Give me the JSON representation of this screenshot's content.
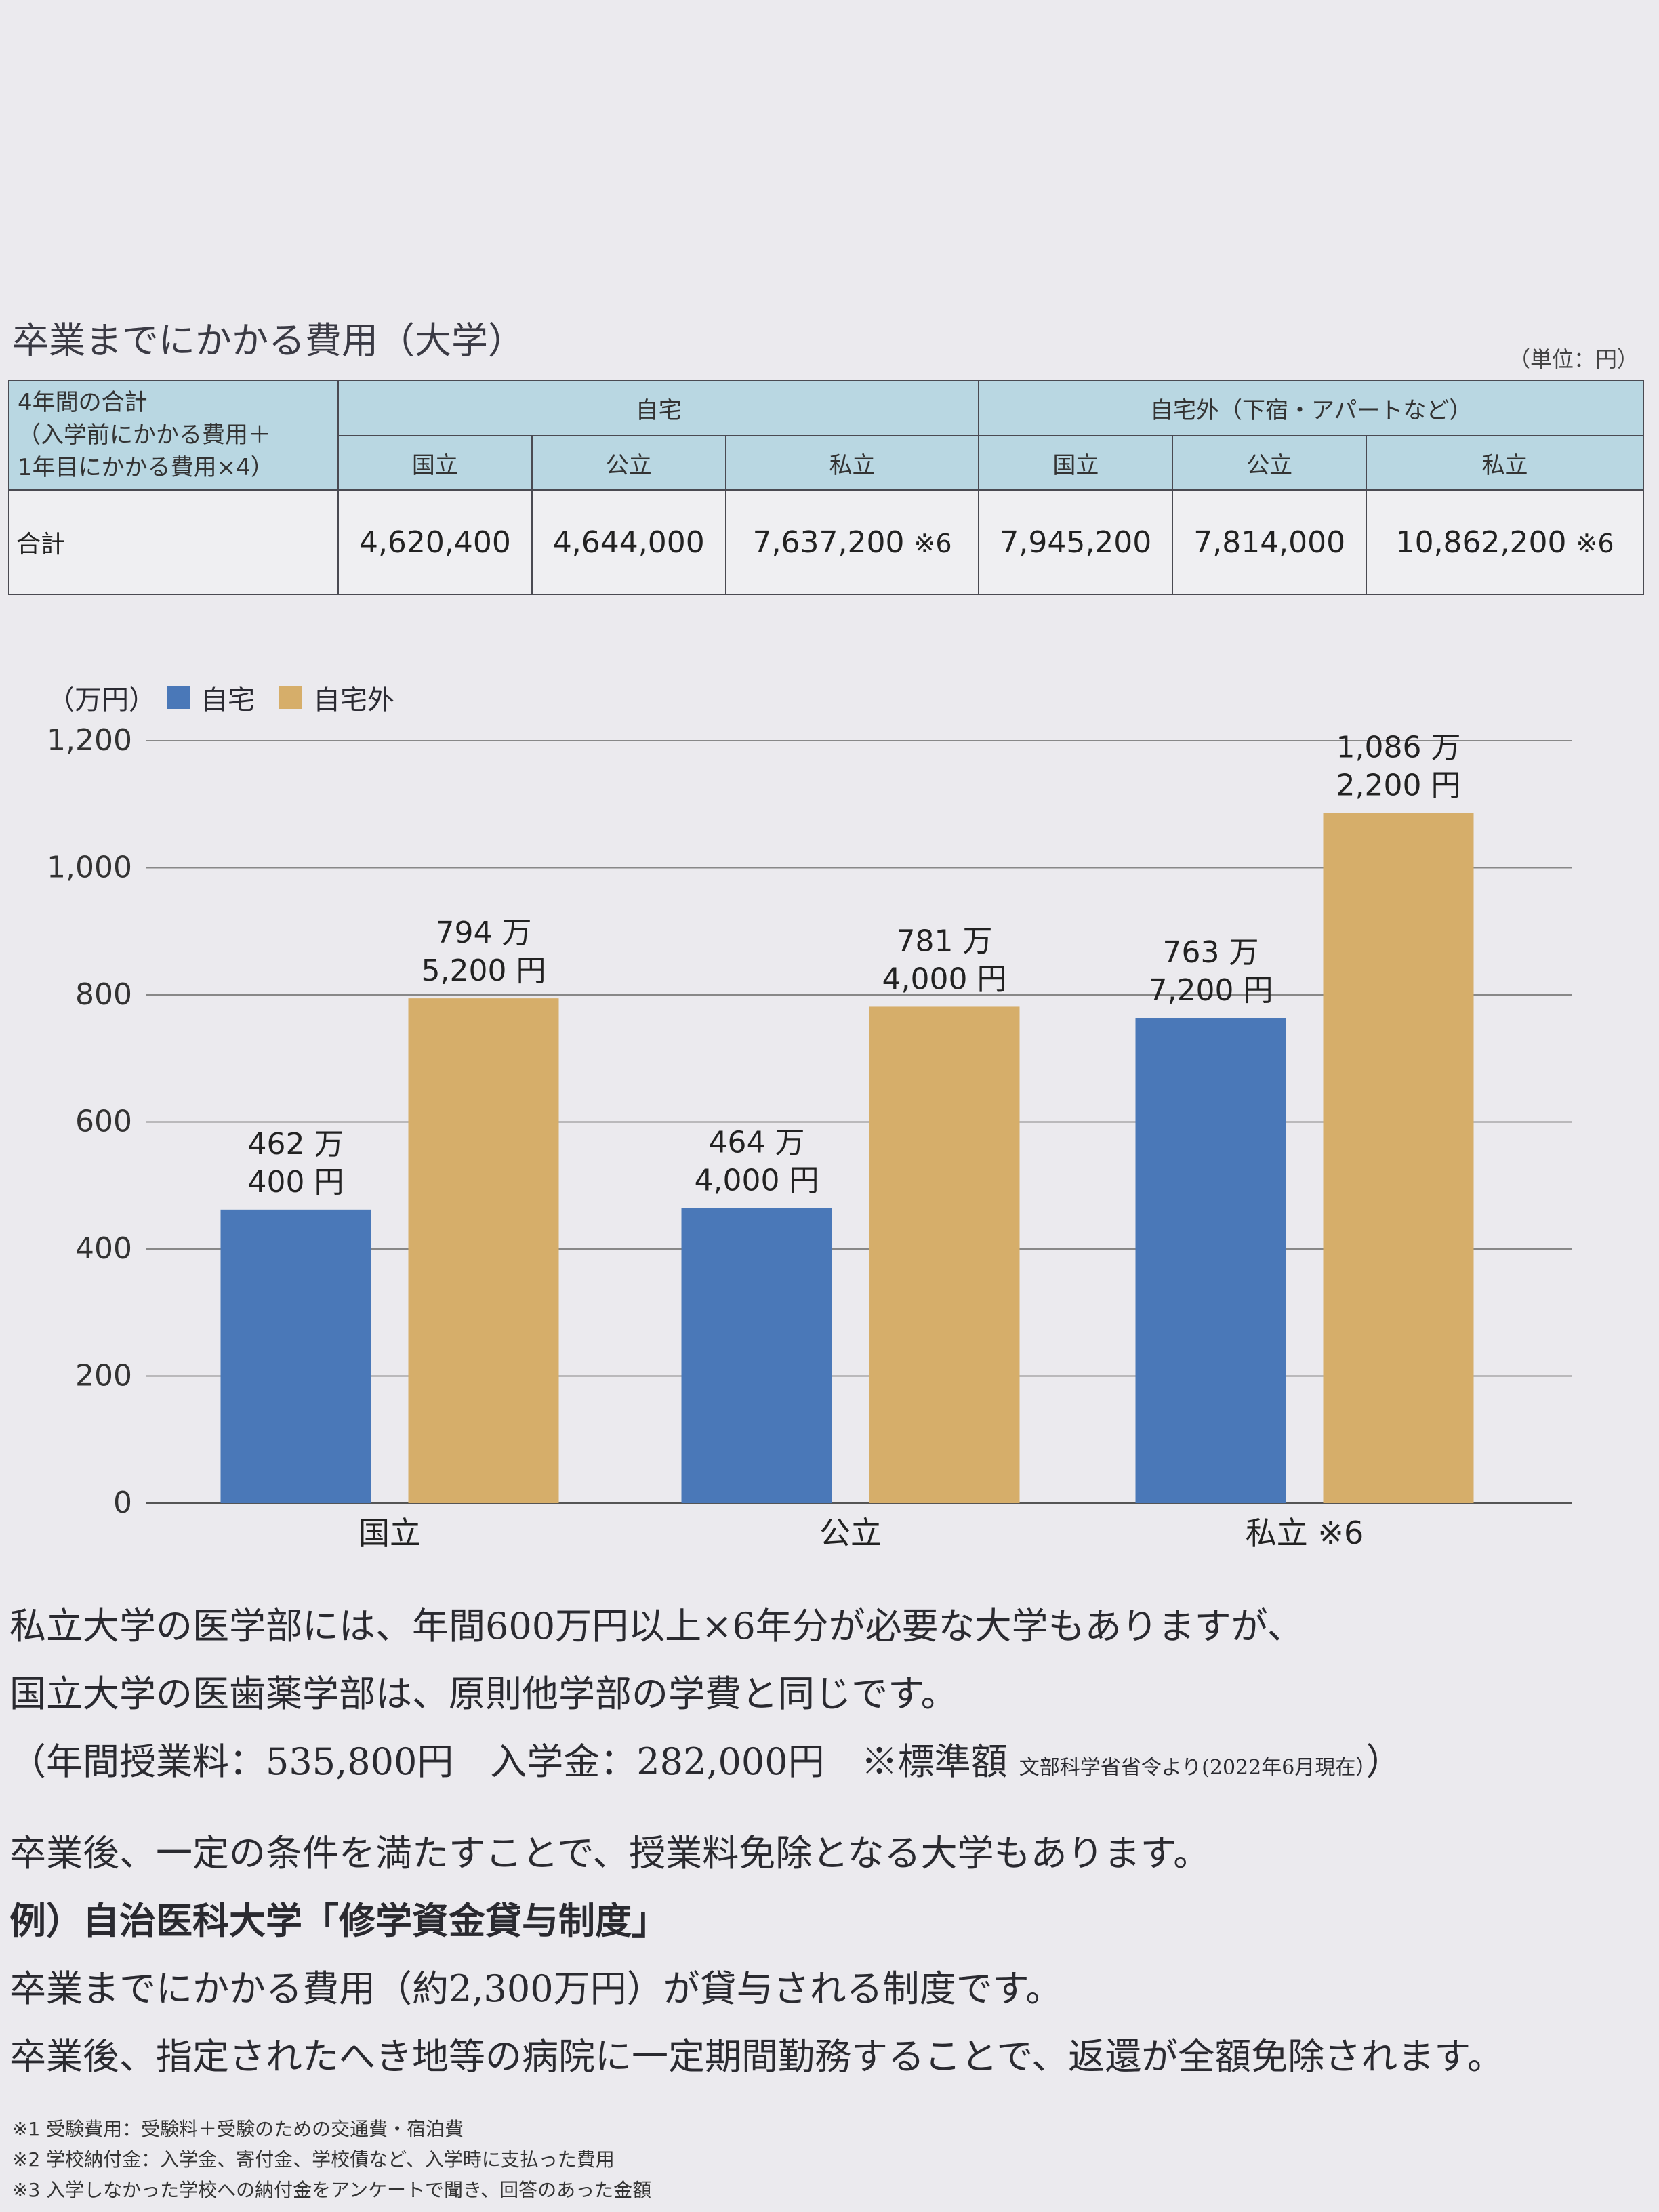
{
  "section_title": "卒業までにかかる費用（大学）",
  "unit_note": "（単位：円）",
  "table": {
    "corner_lines": [
      "4年間の合計",
      "（入学前にかかる費用＋",
      "1年目にかかる費用×4）"
    ],
    "group_home": "自宅",
    "group_away": "自宅外（下宿・アパートなど）",
    "sub_headers": [
      "国立",
      "公立",
      "私立",
      "国立",
      "公立",
      "私立"
    ],
    "row_label": "合計",
    "values": [
      "4,620,400",
      "4,644,000",
      "7,637,200",
      "7,945,200",
      "7,814,000",
      "10,862,200"
    ],
    "note_private": "※6"
  },
  "chart_data": {
    "type": "bar",
    "unit_label": "（万円）",
    "categories": [
      "国立",
      "公立",
      "私立 ※6"
    ],
    "series": [
      {
        "name": "自宅",
        "color": "#4a78b8",
        "values": [
          462.04,
          464.4,
          763.72
        ],
        "labels": [
          [
            "462 万",
            "400 円"
          ],
          [
            "464 万",
            "4,000 円"
          ],
          [
            "763 万",
            "7,200 円"
          ]
        ]
      },
      {
        "name": "自宅外",
        "color": "#d6ae6a",
        "values": [
          794.52,
          781.4,
          1086.22
        ],
        "labels": [
          [
            "794 万",
            "5,200 円"
          ],
          [
            "781 万",
            "4,000 円"
          ],
          [
            "1,086 万",
            "2,200 円"
          ]
        ]
      }
    ],
    "y_ticks": [
      "0",
      "200",
      "400",
      "600",
      "800",
      "1,000",
      "1,200"
    ],
    "ylim": [
      0,
      1200
    ],
    "grid": true,
    "legend_position": "top-left"
  },
  "paragraphs": {
    "p1": "私立大学の医学部には、年間600万円以上×6年分が必要な大学もありますが、",
    "p2": "国立大学の医歯薬学部は、原則他学部の学費と同じです。",
    "p3_main": "（年間授業料：535,800円　入学金：282,000円　※標準額",
    "p3_small": "文部科学省省令より(2022年6月現在）",
    "p3_end": "）",
    "p4": "卒業後、一定の条件を満たすことで、授業料免除となる大学もあります。",
    "p5": "例）自治医科大学「修学資金貸与制度」",
    "p6": "卒業までにかかる費用（約2,300万円）が貸与される制度です。",
    "p7": "卒業後、指定されたへき地等の病院に一定期間勤務することで、返還が全額免除されます。"
  },
  "footnotes": [
    "※1 受験費用：受験料＋受験のための交通費・宿泊費",
    "※2 学校納付金：入学金、寄付金、学校債など、入学時に支払った費用",
    "※3 入学しなかった学校への納付金をアンケートで聞き、回答のあった金額"
  ]
}
